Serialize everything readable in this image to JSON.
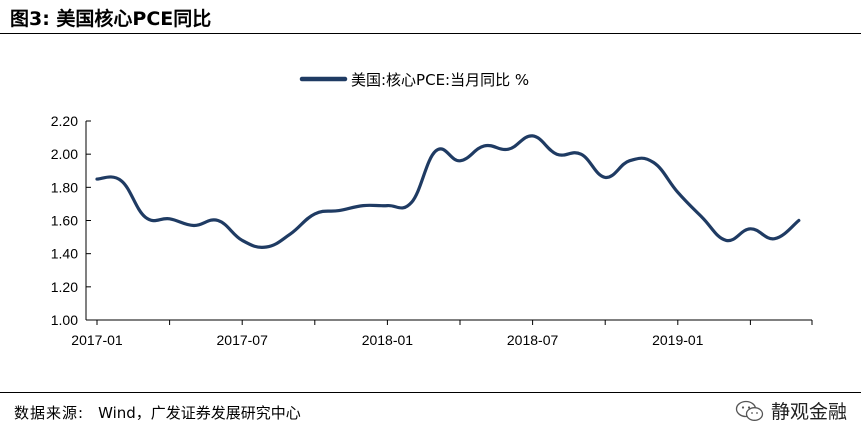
{
  "figure": {
    "title": "图3:  美国核心PCE同比"
  },
  "source": {
    "label": "数据来源:",
    "text": "Wind，广发证券发展研究中心"
  },
  "watermark": {
    "text": "静观金融",
    "icon": "wechat-icon"
  },
  "chart_data": {
    "type": "line",
    "legend": {
      "position": "top-center"
    },
    "grid": false,
    "ylim": [
      1.0,
      2.2
    ],
    "yticks": [
      "1.00",
      "1.20",
      "1.40",
      "1.60",
      "1.80",
      "2.00",
      "2.20"
    ],
    "xtick_labels": [
      "2017-01",
      "2017-07",
      "2018-01",
      "2018-07",
      "2019-01"
    ],
    "x": [
      "2017-01",
      "2017-02",
      "2017-03",
      "2017-04",
      "2017-05",
      "2017-06",
      "2017-07",
      "2017-08",
      "2017-09",
      "2017-10",
      "2017-11",
      "2017-12",
      "2018-01",
      "2018-02",
      "2018-03",
      "2018-04",
      "2018-05",
      "2018-06",
      "2018-07",
      "2018-08",
      "2018-09",
      "2018-10",
      "2018-11",
      "2018-12",
      "2019-01",
      "2019-02",
      "2019-03",
      "2019-04",
      "2019-05",
      "2019-06"
    ],
    "series": [
      {
        "name": "美国:核心PCE:当月同比 %",
        "color": "#1f3b63",
        "values": [
          1.85,
          1.84,
          1.62,
          1.61,
          1.57,
          1.6,
          1.48,
          1.44,
          1.52,
          1.64,
          1.66,
          1.69,
          1.69,
          1.71,
          2.02,
          1.96,
          2.05,
          2.03,
          2.11,
          2.0,
          2.0,
          1.86,
          1.96,
          1.95,
          1.77,
          1.62,
          1.48,
          1.55,
          1.49,
          1.6
        ]
      }
    ]
  }
}
